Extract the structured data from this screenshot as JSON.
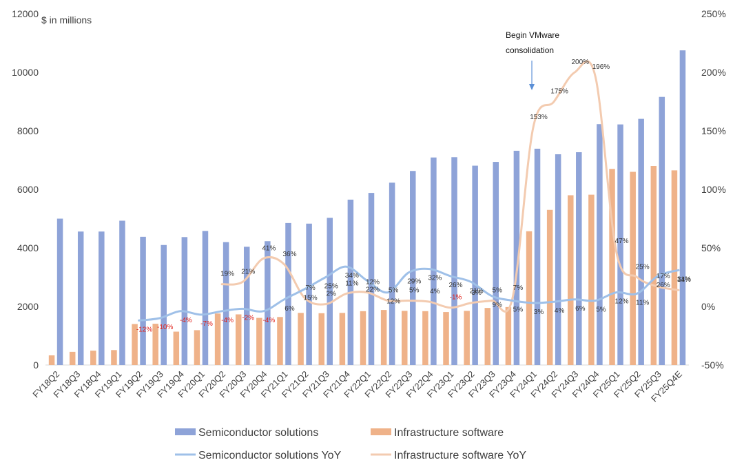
{
  "chart_data": {
    "type": "bar",
    "left_axis_unit": "$ in millions",
    "categories": [
      "FY18Q2",
      "FY18Q3",
      "FY18Q4",
      "FY19Q1",
      "FY19Q2",
      "FY19Q3",
      "FY19Q4",
      "FY20Q1",
      "FY20Q2",
      "FY20Q3",
      "FY20Q4",
      "FY21Q1",
      "FY21Q2",
      "FY21Q3",
      "FY21Q4",
      "FY22Q1",
      "FY22Q2",
      "FY22Q3",
      "FY22Q4",
      "FY23Q1",
      "FY23Q2",
      "FY23Q3",
      "FY23Q4",
      "FY24Q1",
      "FY24Q2",
      "FY24Q3",
      "FY24Q4",
      "FY25Q1",
      "FY25Q2",
      "FY25Q3",
      "FY25Q4E"
    ],
    "y_left": {
      "min": 0,
      "max": 12000,
      "ticks": [
        "0",
        "2000",
        "4000",
        "6000",
        "8000",
        "10000",
        "12000"
      ]
    },
    "y_right": {
      "min": -50,
      "max": 250,
      "ticks": [
        "-50%",
        "0%",
        "50%",
        "100%",
        "150%",
        "200%",
        "250%"
      ]
    },
    "bar_series": [
      {
        "name": "Semiconductor solutions",
        "color": "#8ea3d8",
        "values": [
          5000,
          4560,
          4560,
          4930,
          4380,
          4100,
          4370,
          4580,
          4200,
          4040,
          4230,
          4850,
          4830,
          5030,
          5650,
          5880,
          6230,
          6630,
          7090,
          7100,
          6810,
          6940,
          7320,
          7390,
          7200,
          7270,
          8230,
          8220,
          8410,
          9160,
          10750
        ]
      },
      {
        "name": "Infrastructure software",
        "color": "#efb289",
        "values": [
          330,
          450,
          490,
          510,
          1400,
          1410,
          1140,
          1190,
          1760,
          1730,
          1610,
          1640,
          1780,
          1770,
          1780,
          1840,
          1880,
          1850,
          1840,
          1810,
          1850,
          1950,
          1980,
          4570,
          5300,
          5800,
          5820,
          6700,
          6600,
          6800,
          6650
        ]
      }
    ],
    "line_series": [
      {
        "name": "Semiconductor solutions YoY",
        "color": "#9fc0e8",
        "values": [
          null,
          null,
          null,
          null,
          -12,
          -10,
          -4,
          -7,
          -4,
          -2,
          -4,
          6,
          15,
          25,
          34,
          22,
          12,
          29,
          32,
          26,
          21,
          9,
          5,
          3,
          4,
          6,
          5,
          12,
          11,
          26,
          31
        ],
        "labels": [
          "",
          "",
          "",
          "",
          "-12%",
          "-10%",
          "-4%",
          "-7%",
          "-4%",
          "-2%",
          "-4%",
          "6%",
          "15%",
          "25%",
          "34%",
          "22%",
          "12%",
          "29%",
          "32%",
          "26%",
          "21%",
          "9%",
          "5%",
          "3%",
          "4%",
          "6%",
          "5%",
          "12%",
          "11%",
          "26%",
          "31%"
        ]
      },
      {
        "name": "Infrastructure software YoY",
        "color": "#f3cbb0",
        "values": [
          null,
          null,
          null,
          null,
          null,
          null,
          null,
          null,
          19,
          21,
          41,
          36,
          7,
          2,
          11,
          12,
          5,
          5,
          4,
          -1,
          3,
          5,
          7,
          153,
          175,
          200,
          196,
          47,
          25,
          17,
          14
        ],
        "labels": [
          "",
          "",
          "",
          "",
          "",
          "",
          "",
          "",
          "19%",
          "21%",
          "41%",
          "36%",
          "7%",
          "2%",
          "11%",
          "12%",
          "5%",
          "5%",
          "4%",
          "-1%",
          "3%",
          "5%",
          "7%",
          "153%",
          "175%",
          "200%",
          "196%",
          "47%",
          "25%",
          "17%",
          "14%"
        ]
      }
    ],
    "annotation": {
      "lines": [
        "Begin VMware",
        "consolidation"
      ],
      "category": "FY24Q1"
    },
    "legend": {
      "placement": "bottom",
      "items": [
        "Semiconductor solutions",
        "Infrastructure software",
        "Semiconductor solutions YoY",
        "Infrastructure software YoY"
      ]
    },
    "grid": false
  }
}
